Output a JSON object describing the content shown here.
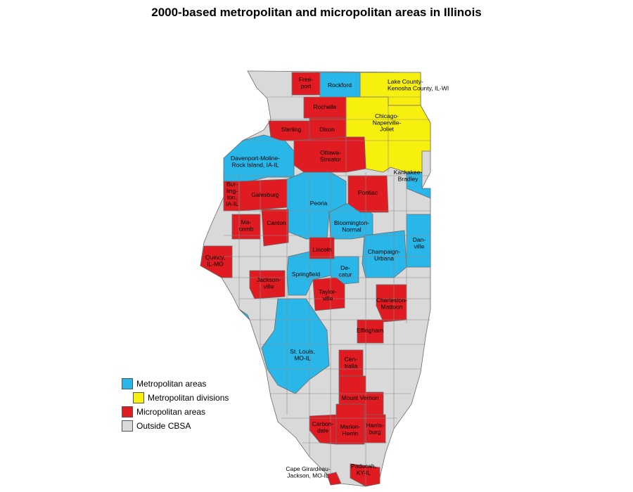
{
  "title": "2000-based metropolitan and micropolitan areas in Illinois",
  "colors": {
    "metro": "#29b6e8",
    "division": "#f7f00e",
    "micro": "#e01b22",
    "outside": "#d9d9d9",
    "border": "#6a6a6a"
  },
  "legend": [
    {
      "label": "Metropolitan areas",
      "category": "metro"
    },
    {
      "label": "Metropolitan divisions",
      "category": "division"
    },
    {
      "label": "Micropolitan areas",
      "category": "micro"
    },
    {
      "label": "Outside CBSA",
      "category": "outside"
    }
  ],
  "labels": {
    "freeport": "Free-\nport",
    "rockford": "Rockford",
    "lake": "Lake County-\nKenosha County, IL-WI",
    "rochelle": "Rochelle",
    "sterling": "Sterling",
    "dixon": "Dixon",
    "chicago": "Chicago-\nNaperville-\nJoliet",
    "davenport": "Davenport-Moline-\nRock Island, IA-IL",
    "ottawa": "Ottawa-\nStreator",
    "kankakee": "Kankakee-\nBradley",
    "burlington": "Bur-\nling-\nton,\nIA-IL",
    "galesburg": "Galesburg",
    "peoria": "Peoria",
    "pontiac": "Pontiac",
    "macomb": "Ma-\ncomb",
    "canton": "Canton",
    "bloomington": "Bloomington-\nNormal",
    "danville": "Dan-\nville",
    "quincy": "Quincy,\nIL-MO",
    "lincoln": "Lincoln",
    "champaign": "Champaign-\nUrbana",
    "springfield": "Springfield",
    "decatur": "De-\ncatur",
    "jacksonville": "Jackson-\nville",
    "taylorville": "Taylor-\nville",
    "charleston": "Charleston-\nMattoon",
    "effingham": "Effingham",
    "stlouis": "St. Louis,\nMO-IL",
    "centralia": "Cen-\ntralia",
    "mtvernon": "Mount Vernon",
    "carbondale": "Carbon-\ndale",
    "marion": "Marion-\nHerrin",
    "harrisburg": "Harris-\nburg",
    "cape": "Cape Girardeau-\nJackson, MO-IL",
    "paducah": "Paducah,\nKY-IL"
  }
}
